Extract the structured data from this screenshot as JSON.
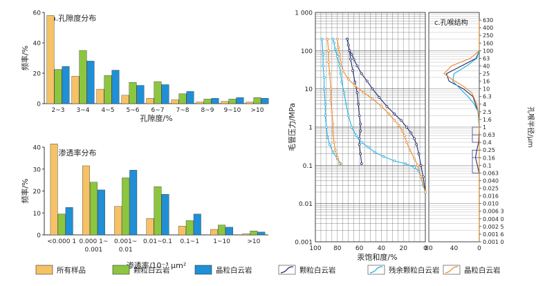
{
  "colors": {
    "all": "#F5C266",
    "granular": "#8CC63F",
    "crystal": "#1F8FD6",
    "curve_granular": "#1F2A6B",
    "curve_residual": "#22AEE0",
    "curve_crystal": "#E98A2B",
    "axis": "#333333"
  },
  "legend": {
    "items": [
      {
        "label": "所有样品",
        "kind": "box",
        "color_key": "all"
      },
      {
        "label": "颗粒白云岩",
        "kind": "box",
        "color_key": "granular"
      },
      {
        "label": "晶粒白云岩",
        "kind": "box",
        "color_key": "crystal"
      },
      {
        "label": "颗粒白云岩",
        "kind": "line",
        "color_key": "curve_granular"
      },
      {
        "label": "残余颗粒白云岩",
        "kind": "line",
        "color_key": "curve_residual"
      },
      {
        "label": "晶粒白云岩",
        "kind": "line",
        "color_key": "curve_crystal"
      }
    ]
  },
  "chart_data": [
    {
      "type": "bar",
      "panel": "a",
      "title": "a.孔隙度分布",
      "xlabel": "孔隙度/%",
      "ylabel": "频率/%",
      "ylim": [
        0,
        60
      ],
      "yticks": [
        0,
        20,
        40,
        60
      ],
      "categories": [
        "2~3",
        "3~4",
        "4~5",
        "5~6",
        "6~7",
        "7~8",
        "8~9",
        "9~10",
        ">10"
      ],
      "series": [
        {
          "name": "所有样品",
          "color_key": "all",
          "values": [
            58,
            18,
            9.5,
            5.5,
            3.5,
            2.5,
            1,
            1.5,
            1
          ]
        },
        {
          "name": "颗粒白云岩",
          "color_key": "granular",
          "values": [
            22.5,
            35,
            18.5,
            14,
            14.5,
            6.5,
            3,
            3,
            4
          ]
        },
        {
          "name": "晶粒白云岩",
          "color_key": "crystal",
          "values": [
            24.5,
            28,
            22,
            12,
            12.5,
            8,
            3.5,
            4,
            3.5
          ]
        }
      ]
    },
    {
      "type": "bar",
      "panel": "b",
      "title": "b.渗透率分布",
      "xlabel": "渗透率/10⁻³ μm²",
      "ylabel": "频率/%",
      "ylim": [
        0,
        40
      ],
      "yticks": [
        0,
        10,
        20,
        30,
        40
      ],
      "categories": [
        "<0.000 1",
        "0.000 1~0.001",
        "0.001~0.01",
        "0.01~0.1",
        "0.1~1",
        "1~10",
        ">10"
      ],
      "category_lines": [
        [
          "<0.000 1"
        ],
        [
          "0.000 1~",
          "0.001"
        ],
        [
          "0.001~",
          "0.01"
        ],
        [
          "0.01~0.1"
        ],
        [
          "0.1~1"
        ],
        [
          "1~10"
        ],
        [
          ">10"
        ]
      ],
      "series": [
        {
          "name": "所有样品",
          "color_key": "all",
          "values": [
            41.5,
            31.5,
            13,
            7.5,
            4,
            2.5,
            0.5
          ]
        },
        {
          "name": "颗粒白云岩",
          "color_key": "granular",
          "values": [
            9.5,
            24,
            26,
            22,
            6.5,
            4.5,
            1.8
          ]
        },
        {
          "name": "晶粒白云岩",
          "color_key": "crystal",
          "values": [
            12.5,
            20.5,
            29.5,
            18.5,
            9.5,
            3.5,
            1.3
          ]
        }
      ]
    },
    {
      "type": "line",
      "panel": "c",
      "title": "c.孔喉结构",
      "xlabel": "汞饱和度/%",
      "ylabel": "毛管压力/MPa",
      "y2label": "孔喉半径/μm",
      "x_reversed": true,
      "xlim": [
        100,
        0
      ],
      "xticks": [
        100,
        80,
        60,
        40,
        20,
        0
      ],
      "y_scale": "log",
      "ylim": [
        0.001,
        1000
      ],
      "yticks": [
        "0.001",
        "0.01",
        "0.1",
        "1",
        "10",
        "100",
        "1 000"
      ],
      "y2_ticks": [
        "0.001 0",
        "0.001 6",
        "0.002 5",
        "0.004 0",
        "0.006 3",
        "0.010",
        "0.016",
        "0.025",
        "0.040",
        "0.063",
        "0.1",
        "0.16",
        "0.25",
        "0.4",
        "0.63",
        "1",
        "1.6",
        "2.5",
        "4",
        "6.3",
        "10",
        "16",
        "25",
        "40",
        "63",
        "100",
        "160",
        "250",
        "400",
        "630"
      ],
      "series": [
        {
          "name": "颗粒白云岩",
          "role": "drainage",
          "color_key": "curve_granular",
          "points": [
            [
              0,
              0.02
            ],
            [
              2,
              0.05
            ],
            [
              4,
              0.1
            ],
            [
              6,
              0.2
            ],
            [
              8,
              0.35
            ],
            [
              10,
              0.5
            ],
            [
              13,
              0.7
            ],
            [
              17,
              1.0
            ],
            [
              22,
              1.5
            ],
            [
              28,
              2.2
            ],
            [
              35,
              3.5
            ],
            [
              42,
              6
            ],
            [
              48,
              10
            ],
            [
              53,
              16
            ],
            [
              58,
              25
            ],
            [
              62,
              40
            ],
            [
              65,
              60
            ],
            [
              67,
              80
            ],
            [
              69,
              100
            ],
            [
              70,
              140
            ],
            [
              71,
              200
            ]
          ]
        },
        {
          "name": "颗粒白云岩",
          "role": "withdrawal",
          "color_key": "curve_granular",
          "points": [
            [
              58,
              0.11
            ],
            [
              59,
              0.2
            ],
            [
              60,
              0.35
            ],
            [
              60,
              0.5
            ],
            [
              59,
              0.8
            ],
            [
              59,
              1.2
            ],
            [
              60,
              2
            ],
            [
              61,
              4
            ],
            [
              62,
              8
            ],
            [
              64,
              15
            ],
            [
              66,
              30
            ],
            [
              68,
              60
            ],
            [
              69,
              100
            ],
            [
              70,
              140
            ],
            [
              71,
              200
            ]
          ]
        },
        {
          "name": "残余颗粒白云岩",
          "role": "drainage",
          "color_key": "curve_residual",
          "points": [
            [
              0,
              0.02
            ],
            [
              2,
              0.03
            ],
            [
              4,
              0.05
            ],
            [
              6,
              0.07
            ],
            [
              10,
              0.09
            ],
            [
              18,
              0.11
            ],
            [
              28,
              0.13
            ],
            [
              38,
              0.17
            ],
            [
              46,
              0.22
            ],
            [
              52,
              0.3
            ],
            [
              58,
              0.4
            ],
            [
              63,
              0.6
            ],
            [
              67,
              1.0
            ],
            [
              70,
              2
            ],
            [
              72,
              4
            ],
            [
              74,
              8
            ],
            [
              76,
              15
            ],
            [
              77,
              25
            ],
            [
              78,
              40
            ],
            [
              80,
              70
            ],
            [
              82,
              110
            ],
            [
              83,
              160
            ],
            [
              84,
              200
            ]
          ]
        },
        {
          "name": "残余颗粒白云岩",
          "role": "withdrawal",
          "color_key": "curve_residual",
          "points": [
            [
              77,
              0.11
            ],
            [
              80,
              0.15
            ],
            [
              84,
              0.22
            ],
            [
              87,
              0.35
            ],
            [
              89,
              0.55
            ],
            [
              90,
              1.0
            ],
            [
              91,
              2
            ],
            [
              91,
              4
            ],
            [
              92,
              10
            ],
            [
              92,
              20
            ],
            [
              93,
              40
            ],
            [
              93,
              80
            ],
            [
              94,
              200
            ]
          ]
        },
        {
          "name": "晶粒白云岩",
          "role": "drainage",
          "color_key": "curve_crystal",
          "points": [
            [
              0,
              0.02
            ],
            [
              4,
              0.05
            ],
            [
              7,
              0.1
            ],
            [
              10,
              0.15
            ],
            [
              14,
              0.25
            ],
            [
              17,
              0.4
            ],
            [
              19,
              0.6
            ],
            [
              21,
              0.8
            ],
            [
              24,
              1.1
            ],
            [
              28,
              1.5
            ],
            [
              33,
              2.2
            ],
            [
              40,
              3.5
            ],
            [
              48,
              5.5
            ],
            [
              56,
              8
            ],
            [
              64,
              12
            ],
            [
              70,
              18
            ],
            [
              75,
              30
            ],
            [
              77,
              50
            ],
            [
              78,
              80
            ],
            [
              79,
              120
            ],
            [
              80,
              200
            ]
          ]
        },
        {
          "name": "晶粒白云岩",
          "role": "withdrawal",
          "color_key": "curve_crystal",
          "points": [
            [
              78,
              0.11
            ],
            [
              80,
              0.16
            ],
            [
              82,
              0.25
            ],
            [
              83,
              0.4
            ],
            [
              84,
              0.7
            ],
            [
              84,
              1.2
            ],
            [
              85,
              2.5
            ],
            [
              86,
              5
            ],
            [
              86,
              10
            ],
            [
              87,
              25
            ],
            [
              88,
              50
            ],
            [
              88,
              100
            ],
            [
              89,
              200
            ]
          ]
        }
      ]
    },
    {
      "type": "line",
      "panel": "c-distribution",
      "xlabel_hidden": true,
      "x_reversed": true,
      "xlim": [
        80,
        0
      ],
      "xticks": [
        80,
        40,
        0
      ],
      "y_axis": "孔喉半径/μm",
      "series": [
        {
          "name": "颗粒白云岩",
          "color_key": "curve_granular",
          "points": [
            [
              0,
              0.001
            ],
            [
              0,
              0.06
            ],
            [
              3,
              0.1
            ],
            [
              6,
              0.16
            ],
            [
              4,
              0.25
            ],
            [
              1,
              0.4
            ],
            [
              0,
              1.0
            ],
            [
              2,
              2.5
            ],
            [
              10,
              6.3
            ],
            [
              25,
              10
            ],
            [
              48,
              16
            ],
            [
              52,
              25
            ],
            [
              28,
              40
            ],
            [
              5,
              63
            ],
            [
              0,
              100
            ],
            [
              0,
              630
            ]
          ]
        },
        {
          "name": "残余颗粒白云岩",
          "color_key": "curve_residual",
          "points": [
            [
              0,
              0.001
            ],
            [
              0,
              1.0
            ],
            [
              2,
              2.5
            ],
            [
              8,
              4
            ],
            [
              18,
              6.3
            ],
            [
              30,
              10
            ],
            [
              42,
              16
            ],
            [
              40,
              25
            ],
            [
              20,
              40
            ],
            [
              4,
              63
            ],
            [
              0,
              100
            ],
            [
              0,
              630
            ]
          ]
        },
        {
          "name": "晶粒白云岩",
          "color_key": "curve_crystal",
          "points": [
            [
              0,
              0.001
            ],
            [
              0,
              1.6
            ],
            [
              4,
              4
            ],
            [
              12,
              8
            ],
            [
              26,
              12
            ],
            [
              44,
              18
            ],
            [
              56,
              25
            ],
            [
              44,
              40
            ],
            [
              14,
              63
            ],
            [
              0,
              100
            ],
            [
              0,
              630
            ]
          ]
        }
      ]
    }
  ]
}
